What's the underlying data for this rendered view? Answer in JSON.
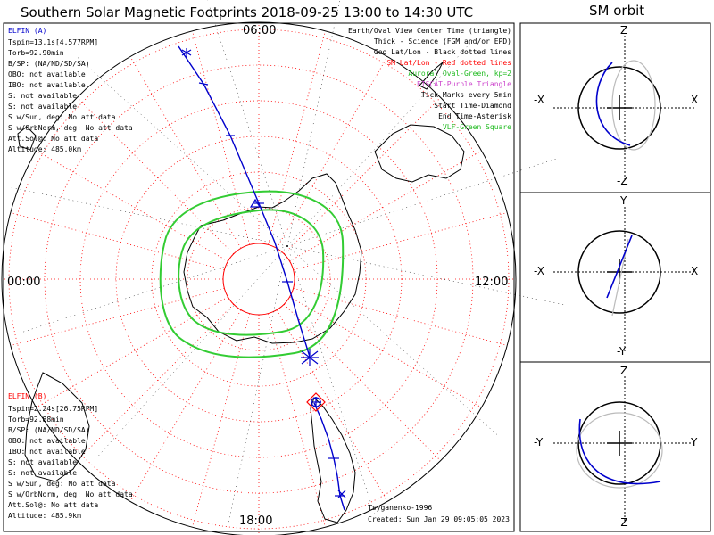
{
  "chart_data": [
    {
      "type": "polar-map",
      "title": "Southern Solar Magnetic Footprints 2018-09-25 13:00 to 14:30 UTC",
      "mlt_labels": {
        "top": "06:00",
        "left": "00:00",
        "right": "12:00",
        "bottom": "18:00"
      },
      "legend": [
        {
          "text": "Earth/Oval View Center Time (triangle)",
          "color": "#000000"
        },
        {
          "text": "Thick - Science (FGM and/or EPD)",
          "color": "#000000"
        },
        {
          "text": "Geo Lat/Lon - Black dotted lines",
          "color": "#000000"
        },
        {
          "text": "SM Lat/Lon - Red dotted lines",
          "color": "#ff0000"
        },
        {
          "text": "Auroral Oval-Green, kp=2",
          "color": "#22bb22"
        },
        {
          "text": "EISCAT-Purple Triangle",
          "color": "#cc44cc"
        },
        {
          "text": "Tick Marks every 5min",
          "color": "#000000"
        },
        {
          "text": "Start Time-Diamond",
          "color": "#000000"
        },
        {
          "text": "End Time-Asterisk",
          "color": "#000000"
        },
        {
          "text": "VLF-Green Square",
          "color": "#22bb22"
        }
      ],
      "probe_a": {
        "name": "ELFIN (A)",
        "color": "#0000cc",
        "lines": [
          "Tspin=13.1s[4.577RPM]",
          "Torb=92.90min",
          "B/SP: (NA/ND/SD/SA)",
          "OBO: not available",
          "IBO: not available",
          "S: not available",
          "S: not available",
          "S w/Sun, deg: No att data",
          "S w/OrbNorm, deg: No att data",
          "Att.Sol@: No att data",
          "Altitude: 485.0km"
        ]
      },
      "probe_b": {
        "name": "ELFIN (B)",
        "color": "#ff0000",
        "lines": [
          "Tspin=2.24s[26.75RPM]",
          "Torb=92.88min",
          "B/SP: (NA/ND/SD/SA)",
          "OBO: not available",
          "IBO: not available",
          "S: not available",
          "S: not available",
          "S w/Sun, deg: No att data",
          "S w/OrbNorm, deg: No att data",
          "Att.Sol@: No att data",
          "Altitude: 485.9km"
        ]
      },
      "credit": "Tsyganenko-1996",
      "created": "Created: Sun Jan 29 09:05:05 2023"
    },
    {
      "type": "orbit-panels",
      "title": "SM orbit",
      "panels": [
        {
          "top": "Z",
          "bottom": "-Z",
          "left": "-X",
          "right": "X"
        },
        {
          "top": "Y",
          "bottom": "-Y",
          "left": "-X",
          "right": "X"
        },
        {
          "top": "Z",
          "bottom": "-Z",
          "left": "-Y",
          "right": "Y"
        }
      ]
    }
  ],
  "colors": {
    "probe_a": "#0000cc",
    "probe_b": "#ff0000",
    "oval": "#33cc33",
    "grid_sm": "#ff0000",
    "grid_geo": "#000000"
  }
}
